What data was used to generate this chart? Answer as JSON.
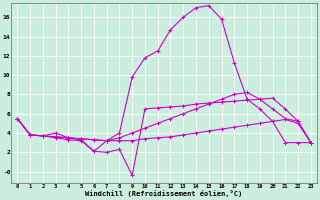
{
  "xlabel": "Windchill (Refroidissement éolien,°C)",
  "bg_color": "#cceedd",
  "grid_color": "#ffffff",
  "line_color": "#cc00cc",
  "xlim": [
    -0.5,
    23.5
  ],
  "ylim": [
    -1.2,
    17.5
  ],
  "xticks": [
    0,
    1,
    2,
    3,
    4,
    5,
    6,
    7,
    8,
    9,
    10,
    11,
    12,
    13,
    14,
    15,
    16,
    17,
    18,
    19,
    20,
    21,
    22,
    23
  ],
  "yticks": [
    0,
    2,
    4,
    6,
    8,
    10,
    12,
    14,
    16
  ],
  "ytick_labels": [
    "-0",
    "2",
    "4",
    "6",
    "8",
    "10",
    "12",
    "14",
    "16"
  ],
  "series1": [
    5.5,
    3.8,
    3.7,
    3.5,
    3.3,
    3.2,
    2.1,
    2.0,
    2.3,
    -0.4,
    6.5,
    6.6,
    6.7,
    6.8,
    7.0,
    7.1,
    7.2,
    7.3,
    7.4,
    7.5,
    7.6,
    6.5,
    5.2,
    3.0
  ],
  "series2": [
    5.5,
    3.8,
    3.7,
    4.0,
    3.5,
    3.3,
    2.1,
    3.2,
    4.0,
    9.8,
    11.8,
    12.5,
    14.7,
    16.0,
    17.0,
    17.2,
    15.8,
    11.3,
    7.5,
    6.5,
    5.2,
    3.0,
    3.0,
    3.0
  ],
  "series3": [
    5.5,
    3.8,
    3.7,
    3.6,
    3.5,
    3.4,
    3.3,
    3.2,
    3.5,
    4.0,
    4.5,
    5.0,
    5.5,
    6.0,
    6.5,
    7.0,
    7.5,
    8.0,
    8.2,
    7.5,
    6.5,
    5.5,
    5.2,
    3.0
  ],
  "series4": [
    5.5,
    3.8,
    3.7,
    3.6,
    3.5,
    3.4,
    3.3,
    3.2,
    3.2,
    3.2,
    3.4,
    3.5,
    3.6,
    3.8,
    4.0,
    4.2,
    4.4,
    4.6,
    4.8,
    5.0,
    5.2,
    5.4,
    5.0,
    3.0
  ]
}
